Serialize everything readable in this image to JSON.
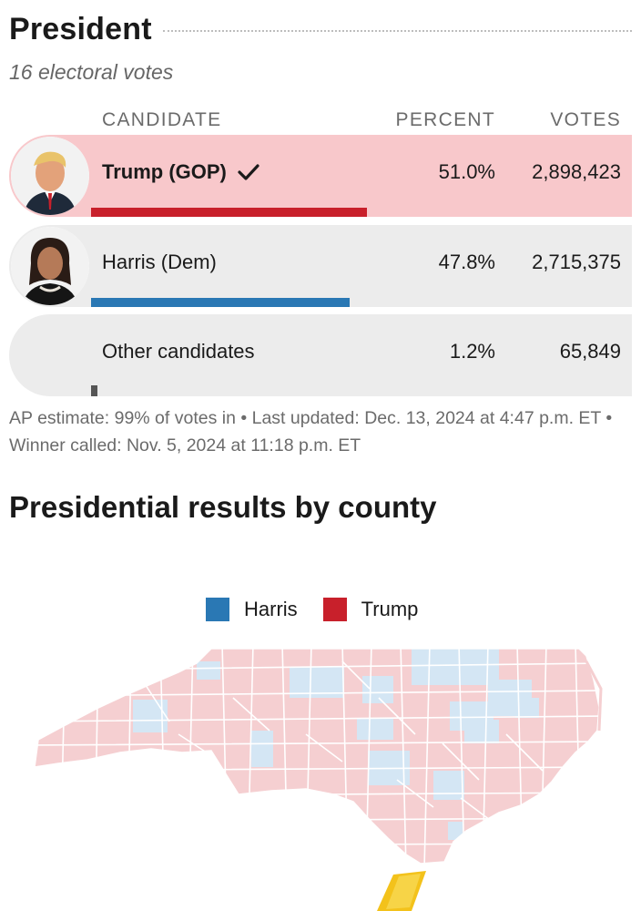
{
  "race": {
    "title": "President",
    "subtitle": "16 electoral votes"
  },
  "columns": {
    "candidate": "CANDIDATE",
    "percent": "PERCENT",
    "votes": "VOTES"
  },
  "candidates": [
    {
      "name": "Trump (GOP)",
      "percent": "51.0%",
      "votes": "2,898,423",
      "share": 0.51,
      "winner": true,
      "bar_color": "#c8202b",
      "row_color": "#f8c8cb"
    },
    {
      "name": "Harris (Dem)",
      "percent": "47.8%",
      "votes": "2,715,375",
      "share": 0.478,
      "winner": false,
      "bar_color": "#2a78b4",
      "row_color": "#ececec"
    },
    {
      "name": "Other candidates",
      "percent": "1.2%",
      "votes": "65,849",
      "share": 0.012,
      "winner": false,
      "bar_color": "#555555",
      "row_color": "#ececec"
    }
  ],
  "footnote": "AP estimate: 99% of votes in • Last updated: Dec. 13, 2024 at 4:47 p.m. ET • Winner called: Nov. 5, 2024 at 11:18 p.m. ET",
  "county_section": {
    "title": "Presidential results by county",
    "legend": [
      {
        "label": "Harris",
        "color": "#2a78b4"
      },
      {
        "label": "Trump",
        "color": "#c8202b"
      }
    ],
    "map_colors": {
      "trump_fill": "#f5cfd1",
      "harris_fill": "#d4e6f4",
      "border": "#ffffff"
    }
  },
  "icons": {
    "winner_check": "check-icon"
  }
}
